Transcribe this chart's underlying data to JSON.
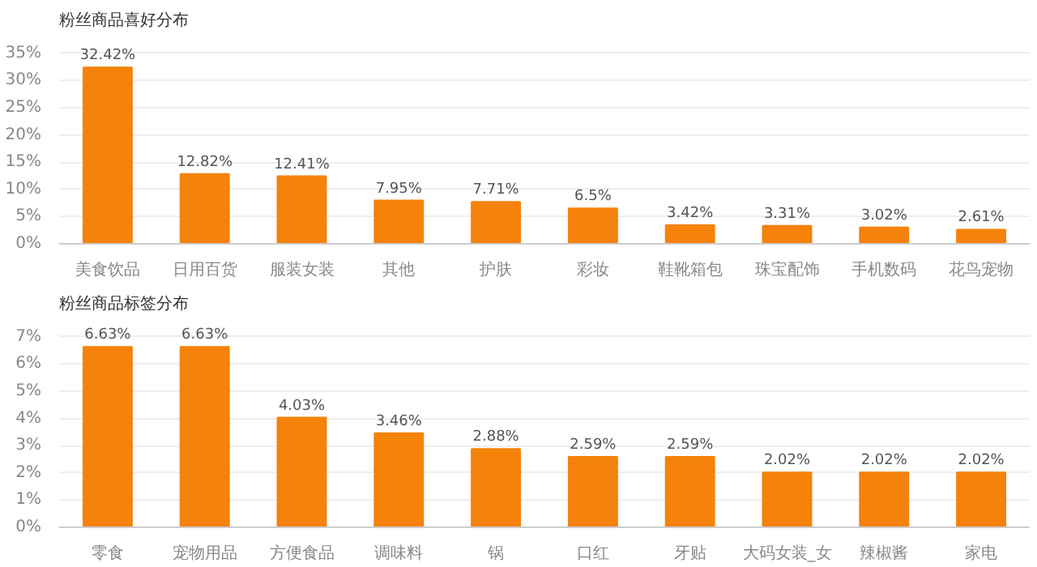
{
  "chart_data": [
    {
      "type": "bar",
      "title": "粉丝商品喜好分布",
      "categories": [
        "美食饮品",
        "日用百货",
        "服装女装",
        "其他",
        "护肤",
        "彩妆",
        "鞋靴箱包",
        "珠宝配饰",
        "手机数码",
        "花鸟宠物"
      ],
      "values": [
        32.42,
        12.82,
        12.41,
        7.95,
        7.71,
        6.5,
        3.42,
        3.31,
        3.02,
        2.61
      ],
      "color": "#f5820a",
      "value_labels": [
        "32.42%",
        "12.82%",
        "12.41%",
        "7.95%",
        "7.71%",
        "6.5%",
        "3.42%",
        "3.31%",
        "3.02%",
        "2.61%"
      ],
      "ylim": [
        0,
        35
      ],
      "yticks": [
        {
          "value": 0,
          "label": "0%"
        },
        {
          "value": 5,
          "label": "5%"
        },
        {
          "value": 10,
          "label": "10%"
        },
        {
          "value": 15,
          "label": "15%"
        },
        {
          "value": 20,
          "label": "20%"
        },
        {
          "value": 25,
          "label": "25%"
        },
        {
          "value": 30,
          "label": "30%"
        },
        {
          "value": 35,
          "label": "35%"
        }
      ],
      "grid": "y"
    },
    {
      "type": "bar",
      "title": "粉丝商品标签分布",
      "categories": [
        "零食",
        "宠物用品",
        "方便食品",
        "调味料",
        "锅",
        "口红",
        "牙贴",
        "大码女装_女",
        "辣椒酱",
        "家电"
      ],
      "values": [
        6.63,
        6.63,
        4.03,
        3.46,
        2.88,
        2.59,
        2.59,
        2.02,
        2.02,
        2.02
      ],
      "color": "#f5820a",
      "value_labels": [
        "6.63%",
        "6.63%",
        "4.03%",
        "3.46%",
        "2.88%",
        "2.59%",
        "2.59%",
        "2.02%",
        "2.02%",
        "2.02%"
      ],
      "ylim": [
        0,
        7
      ],
      "yticks": [
        {
          "value": 0,
          "label": "0%"
        },
        {
          "value": 1,
          "label": "1%"
        },
        {
          "value": 2,
          "label": "2%"
        },
        {
          "value": 3,
          "label": "3%"
        },
        {
          "value": 4,
          "label": "4%"
        },
        {
          "value": 5,
          "label": "5%"
        },
        {
          "value": 6,
          "label": "6%"
        },
        {
          "value": 7,
          "label": "7%"
        }
      ],
      "grid": "y"
    }
  ]
}
